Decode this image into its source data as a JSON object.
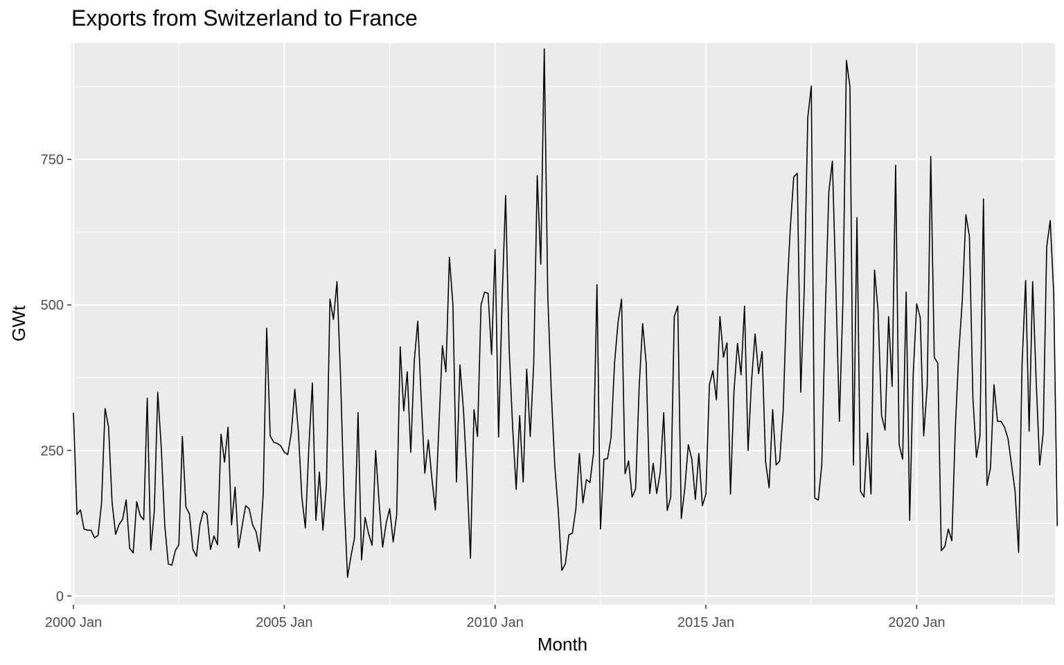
{
  "chart_data": {
    "type": "line",
    "title": "Exports from Switzerland to France",
    "xlabel": "Month",
    "ylabel": "GWt",
    "x_start": "2000-01",
    "x_end": "2022-12",
    "x_ticks": [
      "2000 Jan",
      "2005 Jan",
      "2010 Jan",
      "2015 Jan",
      "2020 Jan"
    ],
    "y_ticks": [
      0,
      250,
      500,
      750
    ],
    "ylim": [
      -15,
      950
    ],
    "grid": true,
    "colors": {
      "panel": "#ebebeb",
      "grid": "#ffffff",
      "line": "#000000"
    },
    "series": [
      {
        "values": [
          315,
          140,
          148,
          115,
          113,
          113,
          100,
          104,
          160,
          322,
          290,
          160,
          106,
          123,
          132,
          165,
          82,
          74,
          162,
          138,
          131,
          340,
          79,
          145,
          350,
          254,
          120,
          55,
          53,
          78,
          88,
          274,
          153,
          141,
          80,
          68,
          123,
          146,
          140,
          80,
          103,
          88,
          278,
          230,
          290,
          122,
          187,
          83,
          120,
          155,
          150,
          122,
          110,
          77,
          175,
          460,
          275,
          264,
          262,
          258,
          247,
          243,
          280,
          355,
          284,
          170,
          117,
          256,
          366,
          130,
          213,
          113,
          190,
          510,
          475,
          540,
          380,
          170,
          32,
          69,
          100,
          315,
          62,
          135,
          107,
          87,
          250,
          160,
          84,
          125,
          150,
          93,
          140,
          428,
          318,
          385,
          247,
          404,
          472,
          335,
          211,
          268,
          203,
          148,
          290,
          430,
          385,
          582,
          500,
          196,
          397,
          320,
          205,
          65,
          320,
          274,
          500,
          522,
          520,
          415,
          595,
          273,
          510,
          688,
          425,
          290,
          183,
          310,
          196,
          390,
          274,
          400,
          722,
          570,
          940,
          515,
          350,
          223,
          145,
          44,
          55,
          105,
          108,
          150,
          245,
          160,
          200,
          195,
          245,
          535,
          115,
          235,
          236,
          272,
          400,
          470,
          510,
          210,
          232,
          170,
          184,
          358,
          468,
          400,
          176,
          228,
          176,
          212,
          315,
          147,
          170,
          480,
          498,
          133,
          185,
          260,
          235,
          166,
          245,
          155,
          175,
          363,
          387,
          337,
          480,
          410,
          435,
          175,
          352,
          434,
          380,
          498,
          250,
          370,
          450,
          382,
          420,
          230,
          186,
          320,
          225,
          232,
          318,
          510,
          630,
          720,
          726,
          350,
          528,
          822,
          876,
          168,
          165,
          226,
          492,
          695,
          747,
          530,
          300,
          506,
          920,
          875,
          225,
          650,
          180,
          170,
          280,
          175,
          560,
          490,
          310,
          285,
          480,
          360,
          740,
          260,
          235,
          522,
          130,
          380,
          502,
          478,
          275,
          362,
          755,
          410,
          400,
          78,
          85,
          115,
          95,
          290,
          420,
          510,
          655,
          618,
          340,
          238,
          275,
          682,
          190,
          220,
          363,
          300,
          300,
          290,
          270,
          225,
          180,
          75,
          400,
          542,
          283,
          540,
          370,
          225,
          280,
          600,
          645,
          520,
          120
        ]
      }
    ]
  }
}
